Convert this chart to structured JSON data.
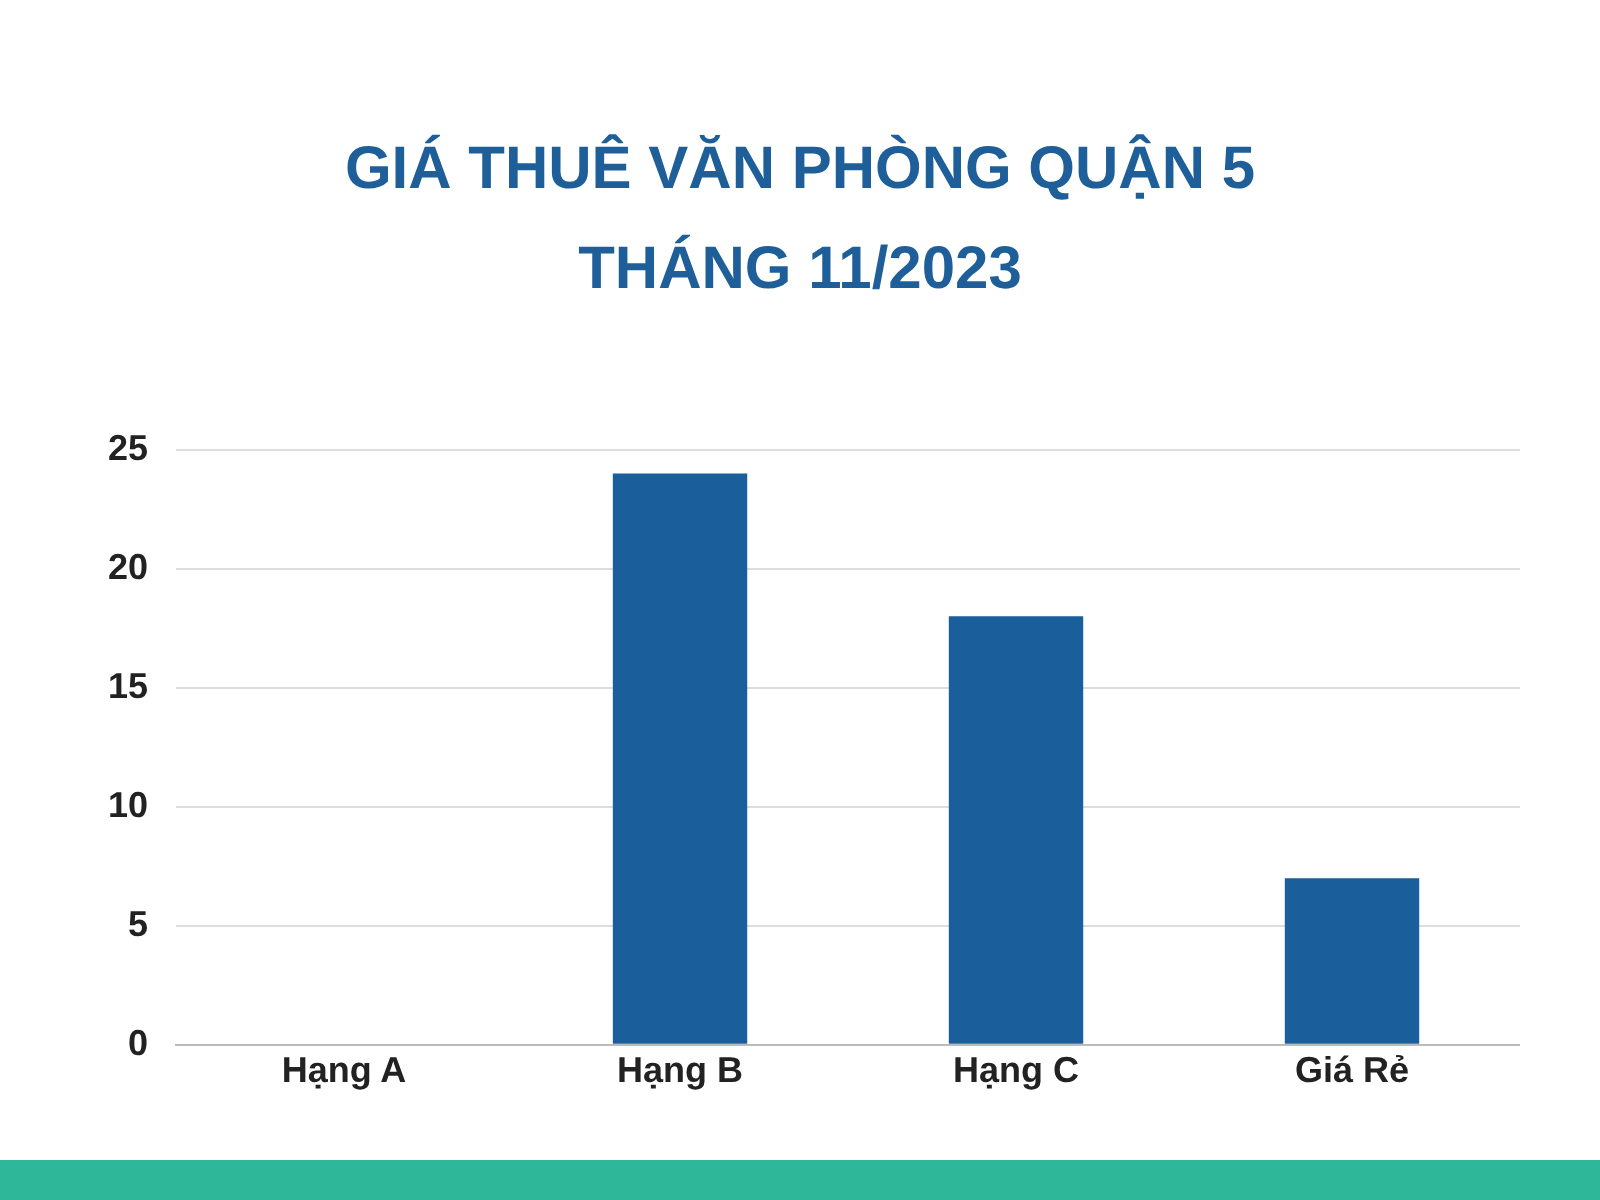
{
  "chart_data": {
    "type": "bar",
    "title": "GIÁ THUÊ VĂN PHÒNG QUẬN 5\nTHÁNG 11/2023",
    "categories": [
      "Hạng A",
      "Hạng B",
      "Hạng C",
      "Giá Rẻ"
    ],
    "values": [
      0,
      24,
      18,
      7
    ],
    "color": "#1a5e9c",
    "ylim": [
      0,
      25
    ],
    "yticks": [
      0,
      5,
      10,
      15,
      20,
      25
    ],
    "grid": "y"
  }
}
